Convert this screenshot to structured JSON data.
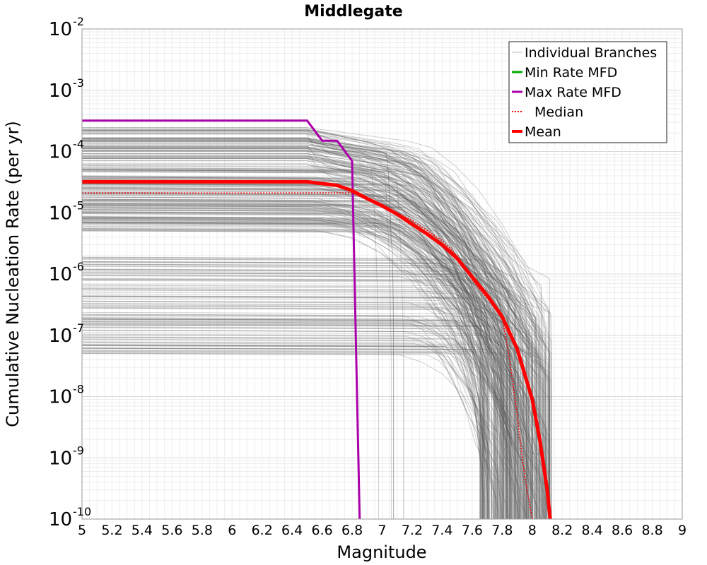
{
  "chart_data": {
    "type": "line",
    "title": "Middlegate",
    "xlabel": "Magnitude",
    "ylabel": "Cumulative Nucleation Rate (per yr)",
    "xlim": [
      5,
      9
    ],
    "ylim": [
      1e-10,
      0.01
    ],
    "yscale": "log",
    "grid": true,
    "legend_position": "top-right",
    "x_ticks": [
      "5",
      "5.2",
      "5.4",
      "5.6",
      "5.8",
      "6",
      "6.2",
      "6.4",
      "6.6",
      "6.8",
      "7",
      "7.2",
      "7.4",
      "7.6",
      "7.8",
      "8",
      "8.2",
      "8.4",
      "8.6",
      "8.8",
      "9"
    ],
    "y_ticks": [
      {
        "base": "10",
        "exp": "-2",
        "value": 0.01
      },
      {
        "base": "10",
        "exp": "-3",
        "value": 0.001
      },
      {
        "base": "10",
        "exp": "-4",
        "value": 0.0001
      },
      {
        "base": "10",
        "exp": "-5",
        "value": 1e-05
      },
      {
        "base": "10",
        "exp": "-6",
        "value": 1e-06
      },
      {
        "base": "10",
        "exp": "-7",
        "value": 1e-07
      },
      {
        "base": "10",
        "exp": "-8",
        "value": 1e-08
      },
      {
        "base": "10",
        "exp": "-9",
        "value": 1e-09
      },
      {
        "base": "10",
        "exp": "-10",
        "value": 1e-10
      }
    ],
    "series": [
      {
        "name": "Individual Branches",
        "color": "#505050",
        "style": "thin-solid",
        "note": "hundreds of branch curves (gray band)"
      },
      {
        "name": "Min Rate MFD",
        "color": "#00aa00",
        "style": "solid",
        "x": [],
        "y": []
      },
      {
        "name": "Max Rate MFD",
        "color": "#aa00aa",
        "style": "solid",
        "x": [
          5.0,
          6.5,
          6.6,
          6.7,
          6.8,
          6.85
        ],
        "y": [
          0.00032,
          0.00032,
          0.00015,
          0.00015,
          7e-05,
          1e-10
        ]
      },
      {
        "name": "Median",
        "color": "#ff0000",
        "style": "dotted",
        "x": [
          5.0,
          6.5,
          6.8,
          7.0,
          7.2,
          7.4,
          7.5,
          7.6,
          7.7,
          7.8,
          7.85,
          7.9,
          7.95,
          8.0
        ],
        "y": [
          2.1e-05,
          2.1e-05,
          2.1e-05,
          1.3e-05,
          7.5e-06,
          3.5e-06,
          2e-06,
          8e-07,
          4e-07,
          2e-07,
          4e-08,
          5e-09,
          5e-10,
          1e-10
        ]
      },
      {
        "name": "Mean",
        "color": "#ff0000",
        "style": "thick-solid",
        "x": [
          5.0,
          6.5,
          6.7,
          6.8,
          6.9,
          7.0,
          7.1,
          7.2,
          7.3,
          7.4,
          7.5,
          7.6,
          7.7,
          7.8,
          7.9,
          8.0,
          8.05,
          8.1,
          8.12
        ],
        "y": [
          3.2e-05,
          3.2e-05,
          2.8e-05,
          2.3e-05,
          1.7e-05,
          1.3e-05,
          9.5e-06,
          6.5e-06,
          4.5e-06,
          3e-06,
          1.8e-06,
          9e-07,
          4.5e-07,
          2e-07,
          6e-08,
          9e-09,
          2e-09,
          3e-10,
          1e-10
        ]
      }
    ]
  }
}
